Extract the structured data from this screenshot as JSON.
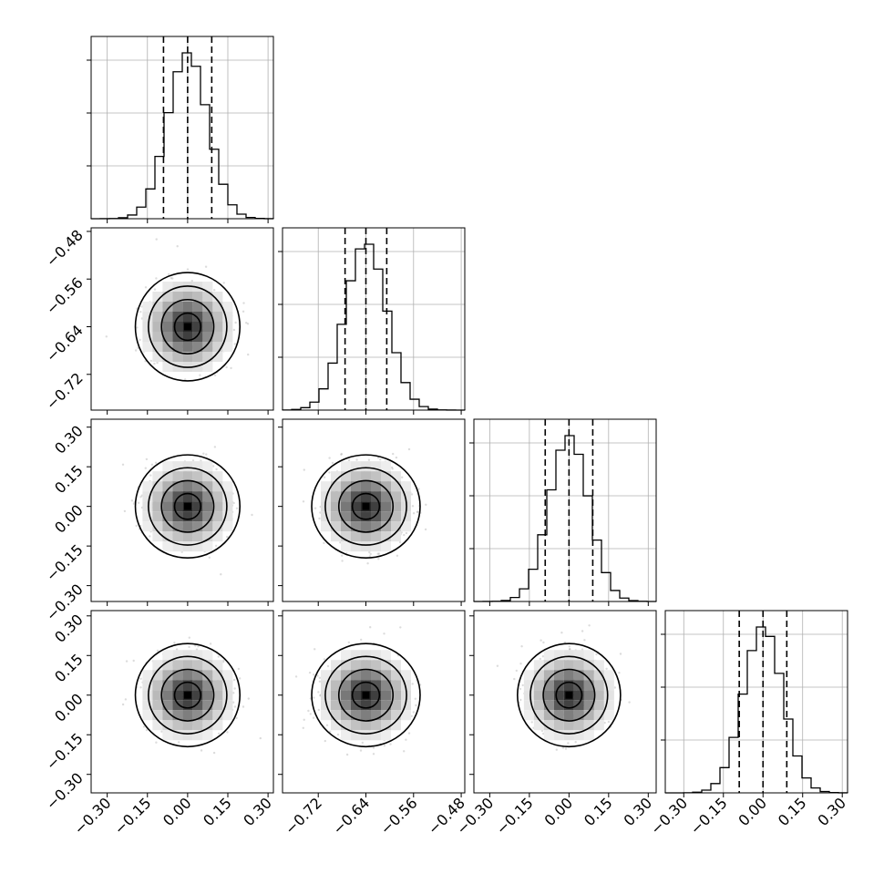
{
  "chart_data": {
    "type": "corner",
    "params": [
      {
        "index": 0,
        "range": [
          -0.36,
          0.32
        ],
        "ticks": [
          -0.3,
          -0.15,
          0.0,
          0.15,
          0.3
        ],
        "tick_labels": [
          "−0.30",
          "−0.15",
          "0.00",
          "0.15",
          "0.30"
        ],
        "mean": 0.0,
        "std": 0.075,
        "quantiles": [
          -0.09,
          0.0,
          0.09
        ]
      },
      {
        "index": 1,
        "range": [
          -0.78,
          -0.474
        ],
        "ticks": [
          -0.72,
          -0.64,
          -0.56,
          -0.48
        ],
        "tick_labels": [
          "−0.72",
          "−0.64",
          "−0.56",
          "−0.48"
        ],
        "mean": -0.64,
        "std": 0.035,
        "quantiles": [
          -0.675,
          -0.64,
          -0.605
        ]
      },
      {
        "index": 2,
        "range": [
          -0.36,
          0.33
        ],
        "ticks": [
          -0.3,
          -0.15,
          0.0,
          0.15,
          0.3
        ],
        "tick_labels": [
          "−0.30",
          "−0.15",
          "0.00",
          "0.15",
          "0.30"
        ],
        "mean": 0.0,
        "std": 0.075,
        "quantiles": [
          -0.09,
          0.0,
          0.09
        ]
      },
      {
        "index": 3,
        "range": [
          -0.37,
          0.32
        ],
        "ticks": [
          -0.3,
          -0.15,
          0.0,
          0.15,
          0.3
        ],
        "tick_labels": [
          "−0.30",
          "−0.15",
          "0.00",
          "0.15",
          "0.30"
        ],
        "mean": 0.0,
        "std": 0.075,
        "quantiles": [
          -0.09,
          0.0,
          0.09
        ]
      }
    ],
    "histogram_bins": 20,
    "contour_levels_sigma": [
      0.5,
      1.0,
      1.5,
      2.0
    ],
    "axis_labels": [],
    "grid": true,
    "title": ""
  }
}
